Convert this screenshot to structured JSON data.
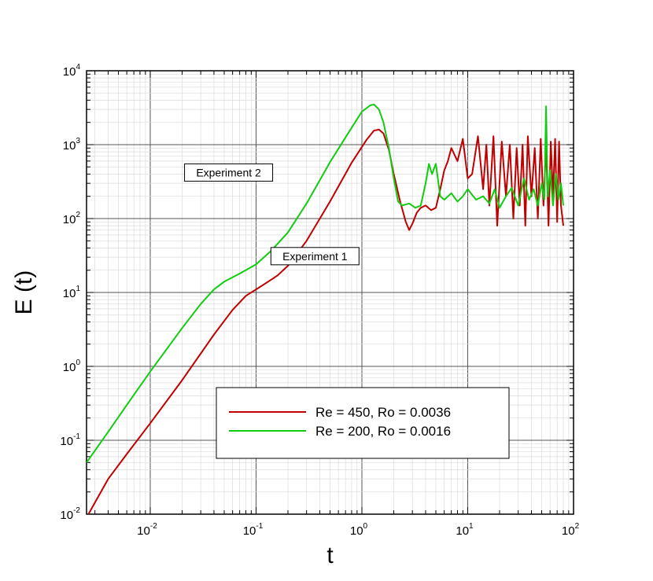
{
  "chart_data": {
    "type": "line",
    "xlabel": "t",
    "ylabel": "E (t)",
    "x_scale": "log",
    "y_scale": "log",
    "xlim": [
      0.0025,
      100
    ],
    "ylim": [
      0.01,
      10000
    ],
    "grid": true,
    "legend_position": "bottom-right",
    "x_ticks": [
      {
        "base": "10",
        "exp": "-2",
        "value": 0.01
      },
      {
        "base": "10",
        "exp": "-1",
        "value": 0.1
      },
      {
        "base": "10",
        "exp": "0",
        "value": 1
      },
      {
        "base": "10",
        "exp": "1",
        "value": 10
      },
      {
        "base": "10",
        "exp": "2",
        "value": 100
      }
    ],
    "y_ticks": [
      {
        "base": "10",
        "exp": "-2",
        "value": 0.01
      },
      {
        "base": "10",
        "exp": "-1",
        "value": 0.1
      },
      {
        "base": "10",
        "exp": "0",
        "value": 1
      },
      {
        "base": "10",
        "exp": "1",
        "value": 10
      },
      {
        "base": "10",
        "exp": "2",
        "value": 100
      },
      {
        "base": "10",
        "exp": "3",
        "value": 1000
      },
      {
        "base": "10",
        "exp": "4",
        "value": 10000
      }
    ],
    "annotations": [
      {
        "text": "Experiment 2",
        "x": 0.055,
        "y": 420
      },
      {
        "text": "Experiment 1",
        "x": 0.36,
        "y": 31
      }
    ],
    "series": [
      {
        "name": "Re = 450, Ro = 0.0036",
        "color": "#c00000",
        "x": [
          0.0025,
          0.004,
          0.006,
          0.01,
          0.02,
          0.04,
          0.06,
          0.08,
          0.1,
          0.13,
          0.16,
          0.2,
          0.3,
          0.5,
          0.8,
          1.1,
          1.3,
          1.45,
          1.6,
          1.8,
          2.0,
          2.3,
          2.6,
          2.8,
          3.0,
          3.3,
          3.6,
          4.0,
          4.5,
          5.0,
          5.5,
          6.0,
          6.5,
          7.0,
          8.0,
          9.0,
          10.0,
          11.0,
          12.5,
          14.0,
          15.0,
          16.0,
          17.5,
          19.0,
          21.0,
          23.0,
          25.0,
          27.0,
          29.0,
          31.0,
          33.0,
          35.0,
          37.0,
          40.0,
          43.0,
          46.0,
          49.0,
          52.0,
          55.0,
          58.0,
          61.0,
          64.0,
          67.0,
          70.0,
          73.0,
          76.0,
          80.0
        ],
        "values": [
          0.009,
          0.03,
          0.065,
          0.17,
          0.65,
          2.7,
          5.8,
          9,
          11,
          14,
          17,
          23,
          50,
          170,
          570,
          1150,
          1550,
          1600,
          1420,
          850,
          400,
          170,
          90,
          70,
          85,
          120,
          140,
          150,
          130,
          140,
          250,
          450,
          600,
          900,
          600,
          1200,
          350,
          400,
          1300,
          250,
          1000,
          150,
          1300,
          80,
          1100,
          200,
          1000,
          100,
          900,
          150,
          1000,
          80,
          1300,
          200,
          900,
          100,
          1200,
          150,
          1000,
          80,
          1100,
          200,
          1200,
          90,
          1100,
          150,
          80
        ]
      },
      {
        "name": "Re = 200, Ro = 0.0016",
        "color": "#11cc11",
        "x": [
          0.0025,
          0.004,
          0.006,
          0.01,
          0.02,
          0.03,
          0.04,
          0.05,
          0.07,
          0.1,
          0.14,
          0.2,
          0.3,
          0.5,
          0.8,
          1.0,
          1.2,
          1.3,
          1.45,
          1.6,
          1.8,
          2.0,
          2.2,
          2.4,
          2.8,
          3.2,
          3.6,
          4.0,
          4.3,
          4.6,
          5.0,
          5.5,
          6.0,
          7.0,
          8.0,
          9.0,
          10.0,
          12.0,
          14.0,
          16.0,
          18.0,
          20.0,
          23.0,
          26.0,
          30.0,
          34.0,
          38.0,
          42.0,
          46.0,
          50.0,
          53.0,
          55.0,
          57.0,
          60.0,
          64.0,
          68.0,
          72.0,
          76.0,
          80.0
        ],
        "values": [
          0.05,
          0.13,
          0.3,
          0.85,
          3.3,
          7,
          11,
          14,
          18,
          24,
          37,
          65,
          160,
          580,
          1700,
          2800,
          3400,
          3500,
          3000,
          2000,
          900,
          350,
          170,
          150,
          160,
          140,
          150,
          300,
          550,
          400,
          550,
          200,
          180,
          220,
          170,
          200,
          250,
          180,
          200,
          160,
          250,
          140,
          200,
          260,
          150,
          350,
          180,
          250,
          150,
          300,
          180,
          3300,
          200,
          450,
          150,
          400,
          180,
          300,
          150
        ]
      }
    ]
  }
}
